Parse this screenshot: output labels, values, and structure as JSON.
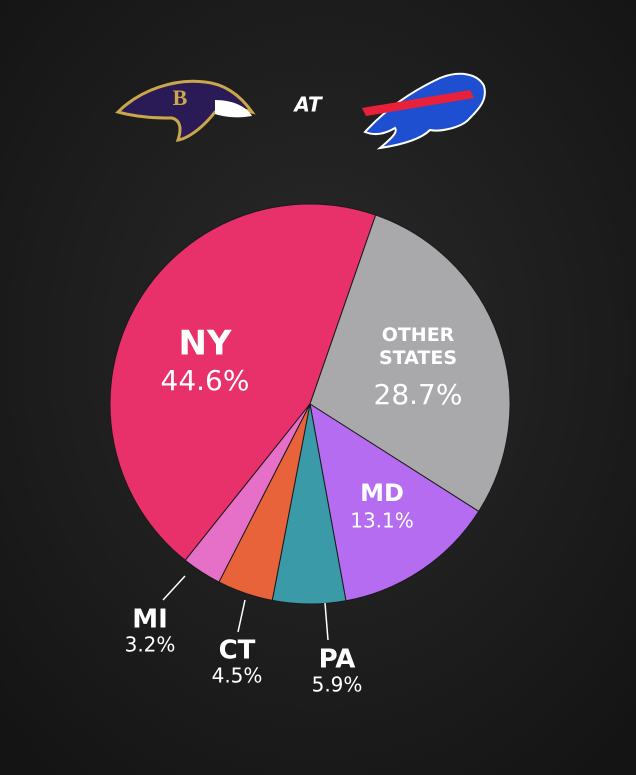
{
  "header": {
    "connector": "AT"
  },
  "chart_data": {
    "type": "pie",
    "categories": [
      "NY",
      "OTHER STATES",
      "MD",
      "PA",
      "CT",
      "MI"
    ],
    "values": [
      44.6,
      28.7,
      13.1,
      5.9,
      4.5,
      3.2
    ],
    "value_labels": [
      "44.6%",
      "28.7%",
      "13.1%",
      "5.9%",
      "4.5%",
      "3.2%"
    ],
    "colors": [
      "#e8306a",
      "#a9a9ab",
      "#b56cf0",
      "#3b9aa8",
      "#e8623a",
      "#e66fc8"
    ]
  }
}
